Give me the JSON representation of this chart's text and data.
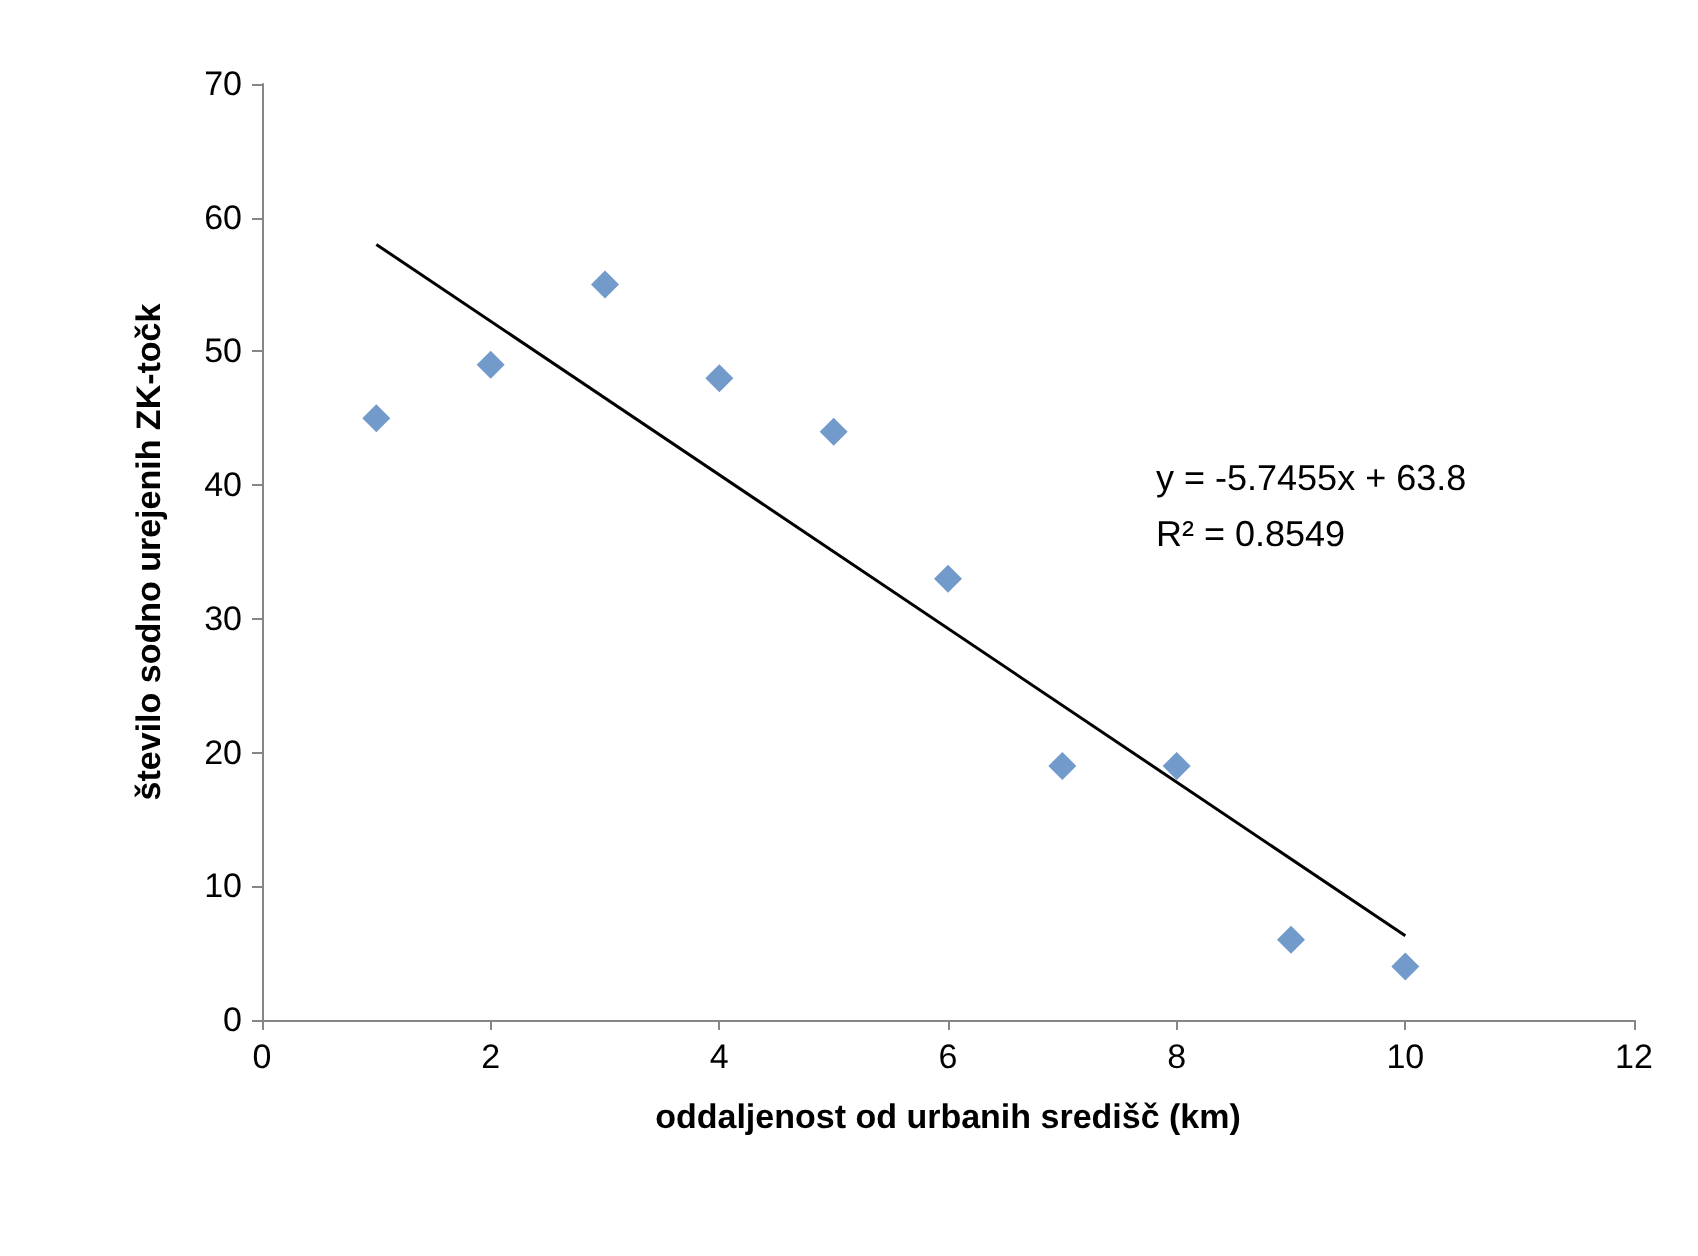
{
  "chart_data": {
    "type": "scatter",
    "xlabel": "oddaljenost od urbanih središč (km)",
    "ylabel": "število sodno urejenih ZK-točk",
    "annotations": [
      "y = -5.7455x + 63.8",
      "R² = 0.8549"
    ],
    "x": [
      1,
      2,
      3,
      4,
      5,
      6,
      7,
      8,
      9,
      10
    ],
    "series": [
      {
        "color": "#4f81bd",
        "values": [
          45,
          49,
          55,
          48,
          44,
          33,
          19,
          19,
          6,
          4
        ]
      },
      {
        "type": "line",
        "color": "#000000",
        "x": [
          1,
          10
        ],
        "values": [
          58,
          6.3
        ],
        "marker": "none"
      }
    ],
    "xlim": [
      0,
      12
    ],
    "xticks": [
      0,
      2,
      4,
      6,
      8,
      10,
      12
    ],
    "ylim": [
      0,
      70
    ],
    "yticks": [
      0,
      10,
      20,
      30,
      40,
      50,
      60,
      70
    ],
    "grid": false,
    "marker": "diamond"
  }
}
